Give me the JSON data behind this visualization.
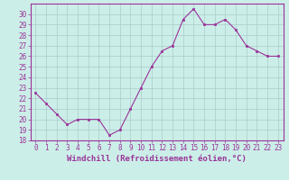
{
  "x": [
    0,
    1,
    2,
    3,
    4,
    5,
    6,
    7,
    8,
    9,
    10,
    11,
    12,
    13,
    14,
    15,
    16,
    17,
    18,
    19,
    20,
    21,
    22,
    23
  ],
  "y": [
    22.5,
    21.5,
    20.5,
    19.5,
    20.0,
    20.0,
    20.0,
    18.5,
    19.0,
    21.0,
    23.0,
    25.0,
    26.5,
    27.0,
    29.5,
    30.5,
    29.0,
    29.0,
    29.5,
    28.5,
    27.0,
    26.5,
    26.0,
    26.0
  ],
  "line_color": "#993399",
  "marker": "s",
  "marker_size": 2,
  "bg_color": "#cceee8",
  "grid_color": "#aacccc",
  "xlabel": "Windchill (Refroidissement éolien,°C)",
  "ylim": [
    18,
    31
  ],
  "xlim_min": -0.5,
  "xlim_max": 23.5,
  "yticks": [
    18,
    19,
    20,
    21,
    22,
    23,
    24,
    25,
    26,
    27,
    28,
    29,
    30
  ],
  "xticks": [
    0,
    1,
    2,
    3,
    4,
    5,
    6,
    7,
    8,
    9,
    10,
    11,
    12,
    13,
    14,
    15,
    16,
    17,
    18,
    19,
    20,
    21,
    22,
    23
  ],
  "tick_color": "#993399",
  "label_color": "#993399",
  "spine_color": "#993399",
  "font_family": "monospace",
  "xlabel_fontsize": 6.5,
  "xtick_fontsize": 5.0,
  "ytick_fontsize": 6.0
}
